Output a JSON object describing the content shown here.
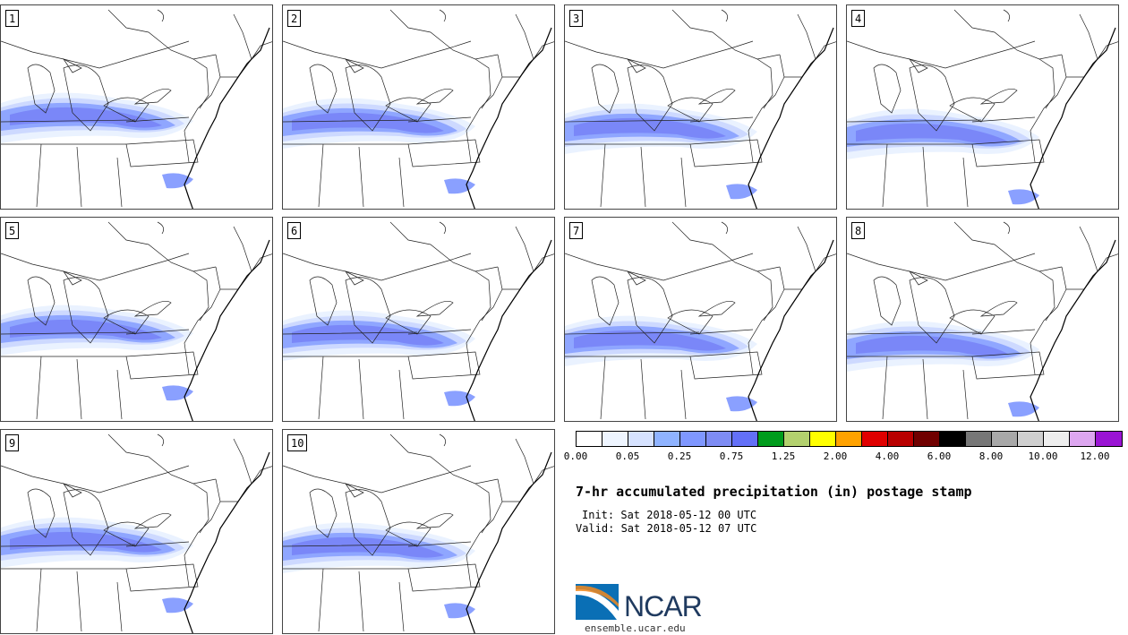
{
  "panels": [
    {
      "label": "1"
    },
    {
      "label": "2"
    },
    {
      "label": "3"
    },
    {
      "label": "4"
    },
    {
      "label": "5"
    },
    {
      "label": "6"
    },
    {
      "label": "7"
    },
    {
      "label": "8"
    },
    {
      "label": "9"
    },
    {
      "label": "10"
    }
  ],
  "legend": {
    "colors": [
      "#ffffff",
      "#eef5ff",
      "#d6e2ff",
      "#8fb3ff",
      "#7f97ff",
      "#7e8cf4",
      "#6370f8",
      "#009c1c",
      "#b3d16e",
      "#ffff00",
      "#ffa200",
      "#e00000",
      "#b90000",
      "#700000",
      "#000000",
      "#777777",
      "#a8a8a8",
      "#cfcfcf",
      "#eeeeee",
      "#dda6f0",
      "#9a14d4"
    ],
    "tick_labels": [
      "0.00",
      "0.05",
      "0.25",
      "0.75",
      "1.25",
      "2.00",
      "4.00",
      "6.00",
      "8.00",
      "10.00",
      "12.00"
    ]
  },
  "title": "7-hr accumulated precipitation (in) postage stamp",
  "init": "Init: Sat 2018-05-12 00 UTC",
  "valid": "Valid: Sat 2018-05-12 07 UTC",
  "logo": {
    "text": "NCAR"
  },
  "site": "ensemble.ucar.edu"
}
